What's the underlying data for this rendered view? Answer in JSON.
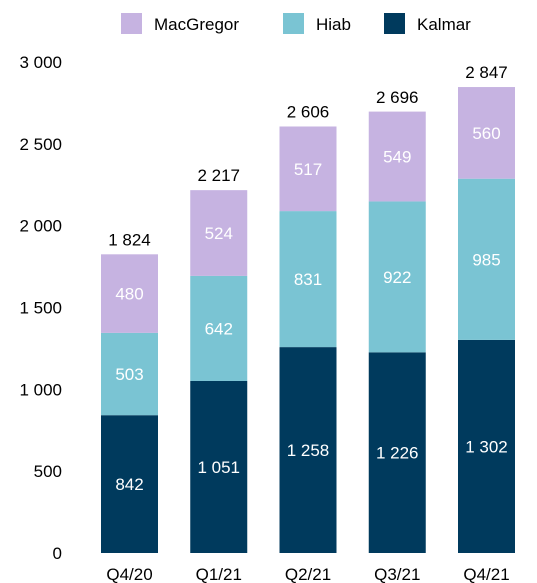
{
  "chart_data": {
    "type": "bar",
    "stacked": true,
    "categories": [
      "Q4/20",
      "Q1/21",
      "Q2/21",
      "Q3/21",
      "Q4/21"
    ],
    "series": [
      {
        "name": "Kalmar",
        "color": "#003a5d",
        "values": [
          842,
          1051,
          1258,
          1226,
          1302
        ],
        "value_labels": [
          "842",
          "1 051",
          "1 258",
          "1 226",
          "1 302"
        ]
      },
      {
        "name": "Hiab",
        "color": "#7ac4d3",
        "values": [
          503,
          642,
          831,
          922,
          985
        ],
        "value_labels": [
          "503",
          "642",
          "831",
          "922",
          "985"
        ]
      },
      {
        "name": "MacGregor",
        "color": "#c6b3e1",
        "values": [
          480,
          524,
          517,
          549,
          560
        ],
        "value_labels": [
          "480",
          "524",
          "517",
          "549",
          "560"
        ]
      }
    ],
    "legend_order": [
      "MacGregor",
      "Hiab",
      "Kalmar"
    ],
    "totals": [
      1824,
      2217,
      2606,
      2696,
      2847
    ],
    "total_labels": [
      "1 824",
      "2 217",
      "2 606",
      "2 696",
      "2 847"
    ],
    "ylim": [
      0,
      3000
    ],
    "yticks": [
      0,
      500,
      1000,
      1500,
      2000,
      2500,
      3000
    ],
    "ytick_labels": [
      "0",
      "500",
      "1 000",
      "1 500",
      "2 000",
      "2 500",
      "3 000"
    ],
    "grid": false,
    "legend_position": "top"
  }
}
